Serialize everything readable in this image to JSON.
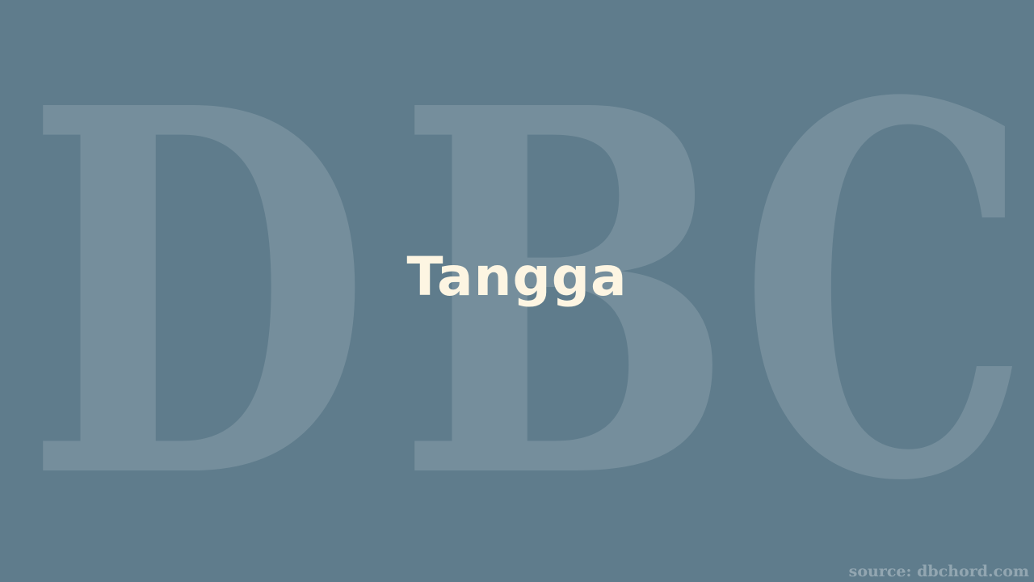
{
  "watermark": {
    "letters": [
      "D",
      "B",
      "C"
    ]
  },
  "title": "Tangga",
  "source": "source: dbchord.com",
  "colors": {
    "background": "#5f7c8c",
    "title": "#fdf5e2"
  }
}
